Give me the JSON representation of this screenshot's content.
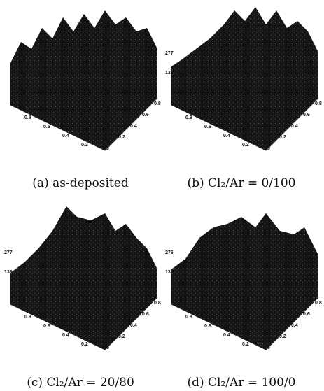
{
  "panels": [
    {
      "caption": "(a) as-deposited",
      "z_labels": [],
      "x_labels": [
        "0.8",
        "0.6",
        "0.4",
        "0.2"
      ],
      "y_labels": [
        "0.8",
        "0.6",
        "0.4",
        "0.2",
        "0"
      ]
    },
    {
      "caption": "(b) Cl₂/Ar = 0/100",
      "z_labels": [
        "277",
        "138"
      ],
      "x_labels": [
        "0.8",
        "0.6",
        "0.4",
        "0.2"
      ],
      "y_labels": [
        "0.8",
        "0.6",
        "0.4",
        "0.2",
        "0"
      ]
    },
    {
      "caption": "(c) Cl₂/Ar = 20/80",
      "z_labels": [
        "277",
        "138"
      ],
      "x_labels": [
        "0.8",
        "0.6",
        "0.4",
        "0.2"
      ],
      "y_labels": [
        "0.8",
        "0.6",
        "0.4",
        "0.2",
        "0"
      ]
    },
    {
      "caption": "(d) Cl₂/Ar = 100/0",
      "z_labels": [
        "276",
        "138"
      ],
      "x_labels": [
        "0.8",
        "0.6",
        "0.4",
        "0.2"
      ],
      "y_labels": [
        "0.8",
        "0.6",
        "0.4",
        "0.2",
        "0"
      ]
    }
  ]
}
